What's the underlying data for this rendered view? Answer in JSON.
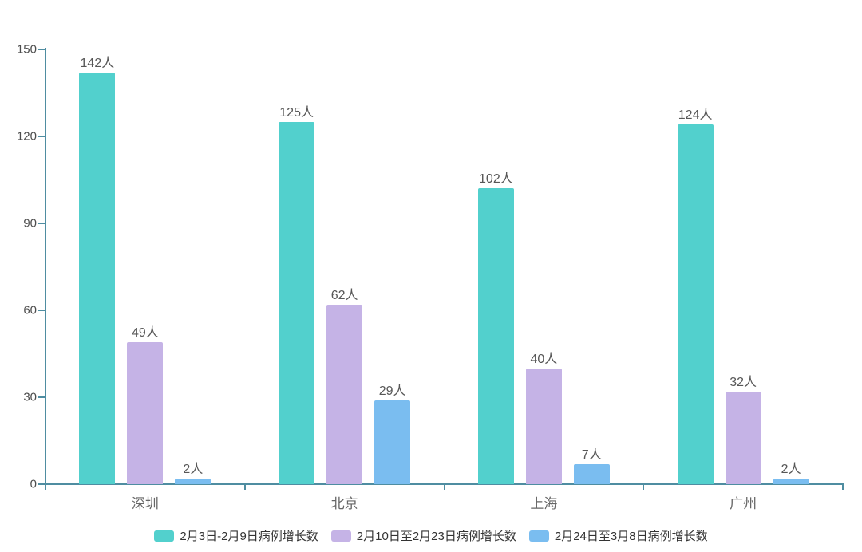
{
  "chart_data": {
    "type": "bar",
    "title": "",
    "categories": [
      "深圳",
      "北京",
      "上海",
      "广州"
    ],
    "series": [
      {
        "name": "2月3日-2月9日病例增长数",
        "color": "#52d0cd",
        "values": [
          142,
          125,
          102,
          124
        ]
      },
      {
        "name": "2月10日至2月23日病例增长数",
        "color": "#c5b3e6",
        "values": [
          49,
          62,
          40,
          32
        ]
      },
      {
        "name": "2月24日至3月8日病例增长数",
        "color": "#7abdf0",
        "values": [
          2,
          29,
          7,
          2
        ]
      }
    ],
    "value_suffix": "人",
    "yticks": [
      0,
      30,
      60,
      90,
      120,
      150
    ],
    "ylim": [
      0,
      150
    ],
    "xlabel": "",
    "ylabel": "",
    "grid": false,
    "legend_position": "bottom",
    "axis_color": "#4f8da1",
    "background_color": "#ffffff"
  }
}
